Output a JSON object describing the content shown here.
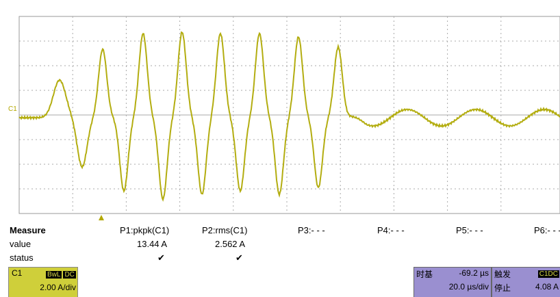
{
  "screen": {
    "channel_marker": "C1"
  },
  "measure": {
    "header": "Measure",
    "row_labels": [
      "value",
      "status"
    ],
    "params": [
      {
        "name": "P1:pkpk(C1)",
        "value": "13.44 A",
        "status": "✔"
      },
      {
        "name": "P2:rms(C1)",
        "value": "2.562 A",
        "status": "✔"
      },
      {
        "name": "P3:- - -"
      },
      {
        "name": "P4:- - -"
      },
      {
        "name": "P5:- - -"
      },
      {
        "name": "P6:- - -"
      }
    ]
  },
  "channel": {
    "name": "C1",
    "badges": [
      "BwL",
      "DC"
    ],
    "scale": "2.00 A/div"
  },
  "timebase": {
    "label": "时基",
    "offset": "-69.2 µs",
    "scale": "20.0 µs/div"
  },
  "trigger": {
    "label": "触发",
    "badge": "C1DC",
    "state": "停止",
    "level": "4.08 A"
  }
}
